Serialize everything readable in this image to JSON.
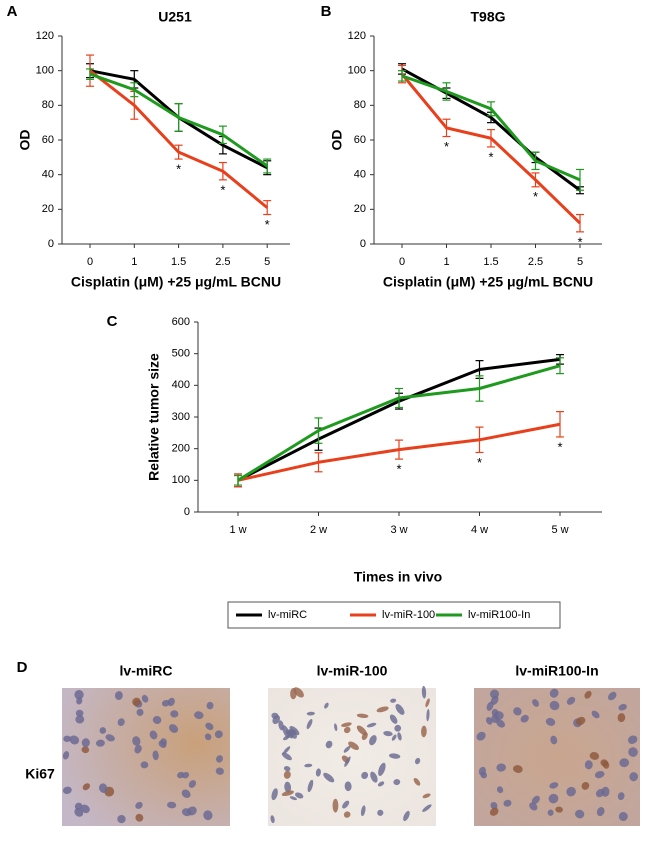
{
  "chart_data": [
    {
      "type": "line",
      "panel_label": "A",
      "title": "U251",
      "x_label": "Cisplatin (μM) +25 μg/mL BCNU",
      "y_label": "OD",
      "categories": [
        "0",
        "1",
        "1.5",
        "2.5",
        "5"
      ],
      "ylim": [
        0,
        120
      ],
      "yticks": [
        0,
        20,
        40,
        60,
        80,
        100,
        120
      ],
      "marker": "*",
      "significant": [
        false,
        false,
        true,
        true,
        true
      ],
      "series": [
        {
          "color": "#000000",
          "values": [
            100,
            95,
            73,
            57,
            44
          ],
          "errors": [
            4,
            5,
            8,
            5,
            4
          ]
        },
        {
          "color": "#e8401c",
          "values": [
            100,
            80,
            53,
            42,
            21
          ],
          "errors": [
            9,
            8,
            4,
            5,
            4
          ]
        },
        {
          "color": "#1e9a1e",
          "values": [
            98,
            89,
            73,
            63,
            45
          ],
          "errors": [
            3,
            4,
            8,
            5,
            4
          ]
        }
      ]
    },
    {
      "type": "line",
      "panel_label": "B",
      "title": "T98G",
      "x_label": "Cisplatin (μM) +25 μg/mL BCNU",
      "y_label": "OD",
      "categories": [
        "0",
        "1",
        "1.5",
        "2.5",
        "5"
      ],
      "ylim": [
        0,
        120
      ],
      "yticks": [
        0,
        20,
        40,
        60,
        80,
        100,
        120
      ],
      "marker": "*",
      "significant": [
        false,
        true,
        true,
        true,
        true
      ],
      "series": [
        {
          "color": "#000000",
          "values": [
            101,
            87,
            73,
            50,
            31
          ],
          "errors": [
            3,
            3,
            3,
            3,
            2
          ]
        },
        {
          "color": "#e8401c",
          "values": [
            98,
            67,
            61,
            37,
            12
          ],
          "errors": [
            5,
            5,
            5,
            4,
            5
          ]
        },
        {
          "color": "#1e9a1e",
          "values": [
            97,
            88,
            78,
            48,
            37
          ],
          "errors": [
            3,
            5,
            4,
            5,
            6
          ]
        }
      ]
    },
    {
      "type": "line",
      "panel_label": "C",
      "x_label": "Times in vivo",
      "y_label": "Relative tumor size",
      "categories": [
        "1 w",
        "2 w",
        "3 w",
        "4 w",
        "5 w"
      ],
      "ylim": [
        0,
        600
      ],
      "yticks": [
        0,
        100,
        200,
        300,
        400,
        500,
        600
      ],
      "marker": "*",
      "significant": [
        false,
        false,
        true,
        true,
        true
      ],
      "series": [
        {
          "name": "lv-miRC",
          "color": "#000000",
          "values": [
            100,
            230,
            350,
            450,
            482
          ],
          "errors": [
            20,
            35,
            25,
            28,
            15
          ]
        },
        {
          "name": "lv-miR-100",
          "color": "#e8401c",
          "values": [
            100,
            157,
            197,
            228,
            277
          ],
          "errors": [
            20,
            30,
            30,
            40,
            40
          ]
        },
        {
          "name": "lv-miR100-In",
          "color": "#1e9a1e",
          "values": [
            100,
            257,
            360,
            390,
            462
          ],
          "errors": [
            15,
            40,
            30,
            40,
            25
          ]
        }
      ]
    }
  ],
  "images": {
    "panel_label": "D",
    "row_label": "Ki67",
    "titles": [
      "lv-miRC",
      "lv-miR-100",
      "lv-miR100-In"
    ]
  }
}
